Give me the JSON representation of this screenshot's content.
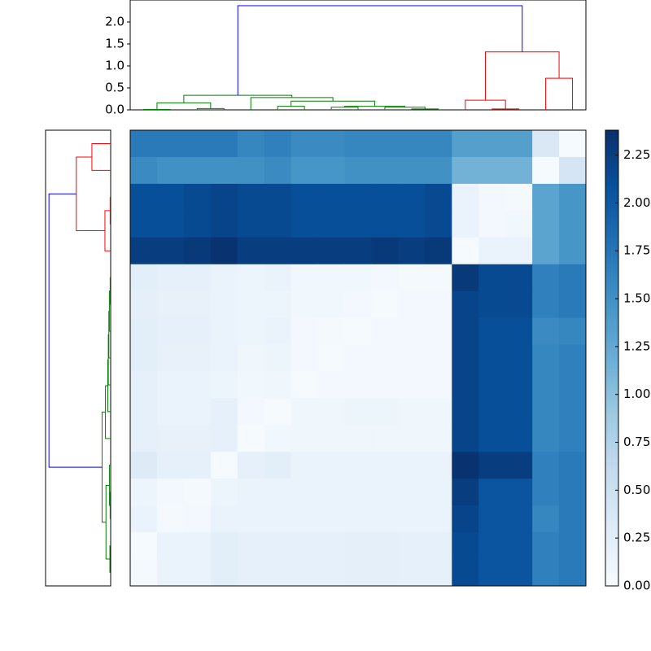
{
  "chart_data": [
    {
      "type": "dendrogram",
      "orientation": "top",
      "xlim": [
        -0.5,
        16.5
      ],
      "ylim": [
        0,
        2.5
      ],
      "yticks": [
        {
          "value": 0,
          "label": "0.0"
        },
        0.5,
        {
          "value": 1,
          "label": "1.0"
        },
        1.5,
        {
          "value": 2,
          "label": "2.0"
        }
      ],
      "links": [
        {
          "x": [
            0,
            0,
            1,
            1
          ],
          "h": [
            0,
            0.01,
            0.01,
            0
          ],
          "color": "#008000"
        },
        {
          "x": [
            2,
            2,
            3,
            3
          ],
          "h": [
            0,
            0.03,
            0.03,
            0
          ],
          "color": "#008000"
        },
        {
          "x": [
            0.5,
            0.5,
            2.5,
            2.5
          ],
          "h": [
            0.01,
            0.16,
            0.16,
            0.03
          ],
          "color": "#008000"
        },
        {
          "x": [
            5,
            5,
            6,
            6
          ],
          "h": [
            0,
            0.08,
            0.08,
            0
          ],
          "color": "#008000"
        },
        {
          "x": [
            7,
            7,
            8,
            8
          ],
          "h": [
            0,
            0.06,
            0.06,
            0
          ],
          "color": "#008000"
        },
        {
          "x": [
            10,
            10,
            11,
            11
          ],
          "h": [
            0,
            0.02,
            0.02,
            0
          ],
          "color": "#008000"
        },
        {
          "x": [
            9,
            9,
            10.5,
            10.5
          ],
          "h": [
            0,
            0.06,
            0.06,
            0.02
          ],
          "color": "#008000"
        },
        {
          "x": [
            7.5,
            7.5,
            9.75,
            9.75
          ],
          "h": [
            0.06,
            0.08,
            0.08,
            0.06
          ],
          "color": "#008000"
        },
        {
          "x": [
            5.5,
            5.5,
            8.625,
            8.625
          ],
          "h": [
            0.08,
            0.2,
            0.2,
            0.08
          ],
          "color": "#008000"
        },
        {
          "x": [
            4,
            4,
            7.0625,
            7.0625
          ],
          "h": [
            0,
            0.28,
            0.28,
            0.2
          ],
          "color": "#008000"
        },
        {
          "x": [
            1.5,
            1.5,
            5.53125,
            5.53125
          ],
          "h": [
            0.16,
            0.33,
            0.33,
            0.28
          ],
          "color": "#008000"
        },
        {
          "x": [
            13,
            13,
            14,
            14
          ],
          "h": [
            0,
            0.02,
            0.02,
            0
          ],
          "color": "#ff0000"
        },
        {
          "x": [
            12,
            12,
            13.5,
            13.5
          ],
          "h": [
            0,
            0.22,
            0.22,
            0.02
          ],
          "color": "#ff0000"
        },
        {
          "x": [
            15,
            15,
            16,
            16
          ],
          "h": [
            0,
            0.72,
            0.72,
            0
          ],
          "color": "#ff0000"
        },
        {
          "x": [
            12.75,
            12.75,
            15.5,
            15.5
          ],
          "h": [
            0.22,
            1.32,
            1.32,
            0.72
          ],
          "color": "#ff0000"
        },
        {
          "x": [
            3.515625,
            3.515625,
            14.125,
            14.125
          ],
          "h": [
            0.33,
            2.37,
            2.37,
            1.32
          ],
          "color": "#0000ff"
        }
      ]
    },
    {
      "type": "dendrogram",
      "orientation": "left",
      "xlim": [
        0,
        2.5
      ],
      "ylim": [
        -0.5,
        16.5
      ],
      "links": [
        {
          "x": [
            0,
            0,
            1,
            1
          ],
          "h": [
            0,
            0.72,
            0.72,
            0
          ],
          "color": "#ff0000"
        },
        {
          "x": [
            2,
            2,
            3,
            3
          ],
          "h": [
            0,
            0.02,
            0.02,
            0
          ],
          "color": "#ff0000"
        },
        {
          "x": [
            2.5,
            2.5,
            4,
            4
          ],
          "h": [
            0.02,
            0.22,
            0.22,
            0
          ],
          "color": "#ff0000"
        },
        {
          "x": [
            0.5,
            0.5,
            3.25,
            3.25
          ],
          "h": [
            0.72,
            1.32,
            1.32,
            0.22
          ],
          "color": "#ff0000"
        },
        {
          "x": [
            5,
            5,
            6,
            6
          ],
          "h": [
            0,
            0.02,
            0.02,
            0
          ],
          "color": "#008000"
        },
        {
          "x": [
            5.5,
            5.5,
            7,
            7
          ],
          "h": [
            0.02,
            0.05,
            0.05,
            0
          ],
          "color": "#008000"
        },
        {
          "x": [
            6.25,
            6.25,
            8,
            8
          ],
          "h": [
            0.05,
            0.07,
            0.07,
            0
          ],
          "color": "#008000"
        },
        {
          "x": [
            7.125,
            7.125,
            9,
            9
          ],
          "h": [
            0.07,
            0.09,
            0.09,
            0
          ],
          "color": "#008000"
        },
        {
          "x": [
            8.0625,
            8.0625,
            10,
            10
          ],
          "h": [
            0.09,
            0.11,
            0.11,
            0
          ],
          "color": "#008000"
        },
        {
          "x": [
            9.03125,
            9.03125,
            11,
            11
          ],
          "h": [
            0.11,
            0.2,
            0.2,
            0
          ],
          "color": "#008000"
        },
        {
          "x": [
            13,
            13,
            14,
            14
          ],
          "h": [
            0,
            0.02,
            0.02,
            0
          ],
          "color": "#008000"
        },
        {
          "x": [
            12,
            12,
            13.5,
            13.5
          ],
          "h": [
            0,
            0.05,
            0.05,
            0.02
          ],
          "color": "#008000"
        },
        {
          "x": [
            15,
            15,
            16,
            16
          ],
          "h": [
            0,
            0.03,
            0.03,
            0
          ],
          "color": "#008000"
        },
        {
          "x": [
            12.75,
            12.75,
            15.5,
            15.5
          ],
          "h": [
            0.05,
            0.18,
            0.18,
            0.03
          ],
          "color": "#008000"
        },
        {
          "x": [
            10.015625,
            10.015625,
            14.125,
            14.125
          ],
          "h": [
            0.2,
            0.33,
            0.33,
            0.18
          ],
          "color": "#008000"
        },
        {
          "x": [
            1.875,
            1.875,
            12.0703125,
            12.0703125
          ],
          "h": [
            1.32,
            2.37,
            2.37,
            0.33
          ],
          "color": "#0000ff"
        }
      ]
    },
    {
      "type": "heatmap",
      "colormap": "Blues",
      "zlim": [
        0,
        2.38
      ],
      "colorbar_ticks": [
        {
          "value": 0,
          "label": "0.00"
        },
        {
          "value": 0.25,
          "label": "0.25"
        },
        {
          "value": 0.5,
          "label": "0.50"
        },
        {
          "value": 0.75,
          "label": "0.75"
        },
        {
          "value": 1,
          "label": "1.00"
        },
        {
          "value": 1.25,
          "label": "1.25"
        },
        {
          "value": 1.5,
          "label": "1.50"
        },
        {
          "value": 1.75,
          "label": "1.75"
        },
        {
          "value": 2,
          "label": "2.00"
        },
        {
          "value": 2.25,
          "label": "2.25"
        }
      ],
      "values": [
        [
          1.7,
          1.7,
          1.7,
          1.7,
          1.6,
          1.65,
          1.55,
          1.55,
          1.6,
          1.6,
          1.6,
          1.6,
          1.35,
          1.35,
          1.35,
          0.35,
          0.02
        ],
        [
          1.55,
          1.5,
          1.5,
          1.5,
          1.5,
          1.55,
          1.45,
          1.45,
          1.5,
          1.5,
          1.5,
          1.5,
          1.15,
          1.15,
          1.15,
          0.02,
          0.4
        ],
        [
          2.1,
          2.1,
          2.15,
          2.2,
          2.15,
          2.15,
          2.1,
          2.1,
          2.1,
          2.1,
          2.1,
          2.15,
          0.15,
          0.05,
          0.03,
          1.3,
          1.45
        ],
        [
          2.1,
          2.1,
          2.15,
          2.2,
          2.15,
          2.15,
          2.1,
          2.1,
          2.1,
          2.1,
          2.1,
          2.15,
          0.15,
          0.05,
          0.08,
          1.3,
          1.45
        ],
        [
          2.25,
          2.25,
          2.3,
          2.35,
          2.25,
          2.25,
          2.25,
          2.25,
          2.25,
          2.3,
          2.25,
          2.3,
          0.02,
          0.15,
          0.15,
          1.3,
          1.45
        ],
        [
          0.25,
          0.2,
          0.2,
          0.15,
          0.12,
          0.15,
          0.08,
          0.08,
          0.08,
          0.05,
          0.03,
          0.03,
          2.3,
          2.15,
          2.15,
          1.65,
          1.7
        ],
        [
          0.22,
          0.18,
          0.18,
          0.15,
          0.12,
          0.12,
          0.08,
          0.08,
          0.05,
          0.02,
          0.05,
          0.05,
          2.2,
          2.15,
          2.15,
          1.65,
          1.7
        ],
        [
          0.25,
          0.2,
          0.2,
          0.15,
          0.12,
          0.15,
          0.05,
          0.03,
          0.02,
          0.05,
          0.05,
          0.05,
          2.2,
          2.1,
          2.1,
          1.55,
          1.6
        ],
        [
          0.25,
          0.18,
          0.18,
          0.15,
          0.1,
          0.12,
          0.05,
          0.02,
          0.05,
          0.05,
          0.05,
          0.05,
          2.2,
          2.1,
          2.1,
          1.6,
          1.65
        ],
        [
          0.2,
          0.15,
          0.15,
          0.12,
          0.08,
          0.1,
          0.02,
          0.05,
          0.05,
          0.05,
          0.05,
          0.05,
          2.2,
          2.1,
          2.1,
          1.6,
          1.65
        ],
        [
          0.2,
          0.15,
          0.15,
          0.2,
          0.05,
          0.02,
          0.1,
          0.1,
          0.12,
          0.12,
          0.1,
          0.1,
          2.2,
          2.1,
          2.1,
          1.6,
          1.65
        ],
        [
          0.2,
          0.18,
          0.18,
          0.2,
          0.02,
          0.08,
          0.1,
          0.1,
          0.1,
          0.1,
          0.1,
          0.1,
          2.2,
          2.1,
          2.1,
          1.6,
          1.65
        ],
        [
          0.3,
          0.2,
          0.2,
          0.02,
          0.2,
          0.25,
          0.15,
          0.15,
          0.15,
          0.15,
          0.15,
          0.15,
          2.35,
          2.25,
          2.25,
          1.65,
          1.7
        ],
        [
          0.12,
          0.05,
          0.03,
          0.12,
          0.15,
          0.15,
          0.15,
          0.15,
          0.15,
          0.15,
          0.15,
          0.15,
          2.25,
          2.05,
          2.05,
          1.65,
          1.7
        ],
        [
          0.15,
          0.03,
          0.05,
          0.15,
          0.15,
          0.15,
          0.15,
          0.15,
          0.15,
          0.15,
          0.15,
          0.15,
          2.2,
          2.05,
          2.05,
          1.6,
          1.7
        ],
        [
          0.02,
          0.15,
          0.15,
          0.25,
          0.2,
          0.2,
          0.2,
          0.2,
          0.22,
          0.22,
          0.2,
          0.2,
          2.15,
          2.05,
          2.05,
          1.65,
          1.7
        ],
        [
          0.03,
          0.15,
          0.15,
          0.25,
          0.2,
          0.2,
          0.2,
          0.2,
          0.22,
          0.22,
          0.2,
          0.2,
          2.15,
          2.05,
          2.05,
          1.65,
          1.7
        ]
      ]
    }
  ]
}
